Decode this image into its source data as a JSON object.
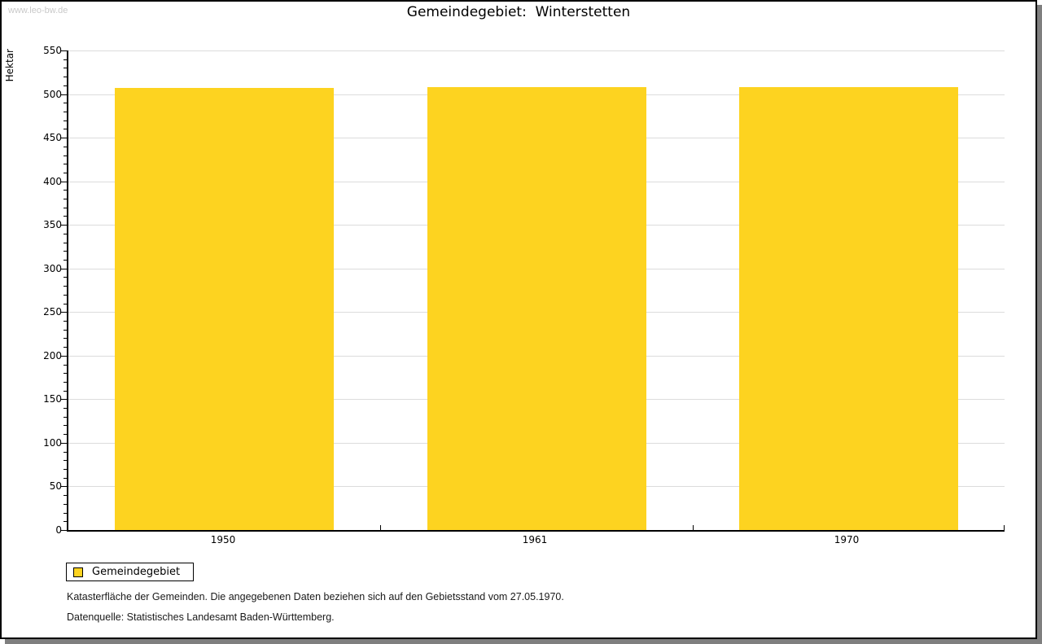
{
  "watermark": "www.leo-bw.de",
  "title": "Gemeindegebiet:  Winterstetten",
  "chart_data": {
    "type": "bar",
    "title": "Gemeindegebiet: Winterstetten",
    "categories": [
      "1950",
      "1961",
      "1970"
    ],
    "values": [
      507,
      508,
      508
    ],
    "series_name": "Gemeindegebiet",
    "xlabel": "",
    "ylabel": "Hektar",
    "ylim": [
      0,
      550
    ],
    "ytick_step": 50,
    "ytick_minor_step": 10,
    "grid": true,
    "bar_color": "#FDD320",
    "gridline_color": "#dcdcdc",
    "legend_position": "bottom-left"
  },
  "legend": {
    "items": [
      {
        "label": "Gemeindegebiet",
        "color": "#FDD320"
      }
    ]
  },
  "footer": {
    "line1": "Katasterfläche der Gemeinden. Die angegebenen Daten beziehen sich auf den Gebietsstand vom 27.05.1970.",
    "line2": "Datenquelle: Statistisches Landesamt Baden-Württemberg."
  }
}
